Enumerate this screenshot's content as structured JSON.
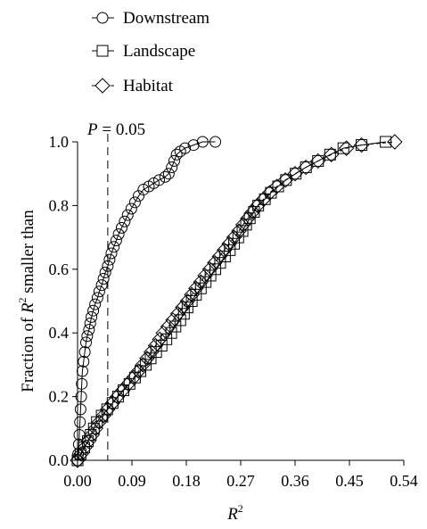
{
  "chart_data": {
    "type": "line",
    "xlabel": "R",
    "xlabel_sup": "2",
    "ylabel_pre": "Fraction of ",
    "ylabel_r": "R",
    "ylabel_sup": "2",
    "ylabel_post": " smaller than",
    "xlim": [
      0.0,
      0.54
    ],
    "ylim": [
      0.0,
      1.0
    ],
    "x_ticks": [
      0.0,
      0.09,
      0.18,
      0.27,
      0.36,
      0.45,
      0.54
    ],
    "x_tick_labels": [
      "0.00",
      "0.09",
      "0.18",
      "0.27",
      "0.36",
      "0.45",
      "0.54"
    ],
    "y_ticks": [
      0.0,
      0.2,
      0.4,
      0.6,
      0.8,
      1.0
    ],
    "y_tick_labels": [
      "0.0",
      "0.2",
      "0.4",
      "0.6",
      "0.8",
      "1.0"
    ],
    "grid": false,
    "legend_position": "top-left",
    "annotation": {
      "text_p": "P",
      "text_rest": " = 0.05",
      "x": 0.05
    },
    "series": [
      {
        "name": "Downstream",
        "marker": "circle",
        "points": [
          [
            0.0,
            0.0
          ],
          [
            0.001,
            0.02
          ],
          [
            0.002,
            0.05
          ],
          [
            0.003,
            0.08
          ],
          [
            0.004,
            0.12
          ],
          [
            0.005,
            0.16
          ],
          [
            0.006,
            0.2
          ],
          [
            0.007,
            0.24
          ],
          [
            0.008,
            0.28
          ],
          [
            0.01,
            0.31
          ],
          [
            0.012,
            0.34
          ],
          [
            0.014,
            0.37
          ],
          [
            0.016,
            0.39
          ],
          [
            0.019,
            0.41
          ],
          [
            0.021,
            0.43
          ],
          [
            0.023,
            0.45
          ],
          [
            0.026,
            0.47
          ],
          [
            0.029,
            0.49
          ],
          [
            0.033,
            0.51
          ],
          [
            0.036,
            0.53
          ],
          [
            0.04,
            0.55
          ],
          [
            0.043,
            0.57
          ],
          [
            0.046,
            0.59
          ],
          [
            0.05,
            0.61
          ],
          [
            0.053,
            0.63
          ],
          [
            0.056,
            0.65
          ],
          [
            0.06,
            0.67
          ],
          [
            0.064,
            0.69
          ],
          [
            0.068,
            0.71
          ],
          [
            0.073,
            0.73
          ],
          [
            0.078,
            0.75
          ],
          [
            0.083,
            0.77
          ],
          [
            0.089,
            0.79
          ],
          [
            0.095,
            0.81
          ],
          [
            0.101,
            0.83
          ],
          [
            0.109,
            0.85
          ],
          [
            0.118,
            0.86
          ],
          [
            0.126,
            0.87
          ],
          [
            0.135,
            0.88
          ],
          [
            0.145,
            0.89
          ],
          [
            0.151,
            0.9
          ],
          [
            0.156,
            0.92
          ],
          [
            0.16,
            0.94
          ],
          [
            0.164,
            0.96
          ],
          [
            0.17,
            0.97
          ],
          [
            0.178,
            0.98
          ],
          [
            0.192,
            0.99
          ],
          [
            0.207,
            1.0
          ],
          [
            0.228,
            1.0
          ]
        ]
      },
      {
        "name": "Landscape",
        "marker": "square",
        "points": [
          [
            0.0,
            0.0
          ],
          [
            0.005,
            0.02
          ],
          [
            0.011,
            0.04
          ],
          [
            0.017,
            0.06
          ],
          [
            0.022,
            0.08
          ],
          [
            0.027,
            0.1
          ],
          [
            0.032,
            0.12
          ],
          [
            0.04,
            0.14
          ],
          [
            0.049,
            0.16
          ],
          [
            0.058,
            0.18
          ],
          [
            0.067,
            0.2
          ],
          [
            0.076,
            0.22
          ],
          [
            0.086,
            0.24
          ],
          [
            0.095,
            0.26
          ],
          [
            0.104,
            0.28
          ],
          [
            0.113,
            0.3
          ],
          [
            0.121,
            0.32
          ],
          [
            0.13,
            0.34
          ],
          [
            0.139,
            0.36
          ],
          [
            0.147,
            0.38
          ],
          [
            0.155,
            0.4
          ],
          [
            0.162,
            0.42
          ],
          [
            0.17,
            0.44
          ],
          [
            0.176,
            0.46
          ],
          [
            0.182,
            0.48
          ],
          [
            0.189,
            0.5
          ],
          [
            0.196,
            0.52
          ],
          [
            0.204,
            0.54
          ],
          [
            0.212,
            0.56
          ],
          [
            0.22,
            0.58
          ],
          [
            0.228,
            0.6
          ],
          [
            0.236,
            0.62
          ],
          [
            0.244,
            0.64
          ],
          [
            0.252,
            0.66
          ],
          [
            0.259,
            0.68
          ],
          [
            0.266,
            0.7
          ],
          [
            0.273,
            0.72
          ],
          [
            0.279,
            0.74
          ],
          [
            0.285,
            0.76
          ],
          [
            0.292,
            0.78
          ],
          [
            0.299,
            0.8
          ],
          [
            0.31,
            0.82
          ],
          [
            0.32,
            0.84
          ],
          [
            0.332,
            0.86
          ],
          [
            0.345,
            0.88
          ],
          [
            0.361,
            0.9
          ],
          [
            0.378,
            0.92
          ],
          [
            0.398,
            0.94
          ],
          [
            0.418,
            0.96
          ],
          [
            0.44,
            0.98
          ],
          [
            0.47,
            0.99
          ],
          [
            0.51,
            1.0
          ]
        ]
      },
      {
        "name": "Habitat",
        "marker": "diamond",
        "points": [
          [
            0.0,
            0.0
          ],
          [
            0.006,
            0.02
          ],
          [
            0.012,
            0.04
          ],
          [
            0.018,
            0.06
          ],
          [
            0.024,
            0.08
          ],
          [
            0.03,
            0.1
          ],
          [
            0.036,
            0.12
          ],
          [
            0.043,
            0.14
          ],
          [
            0.05,
            0.16
          ],
          [
            0.058,
            0.18
          ],
          [
            0.066,
            0.2
          ],
          [
            0.075,
            0.22
          ],
          [
            0.084,
            0.24
          ],
          [
            0.093,
            0.26
          ],
          [
            0.101,
            0.28
          ],
          [
            0.108,
            0.3
          ],
          [
            0.115,
            0.32
          ],
          [
            0.122,
            0.34
          ],
          [
            0.129,
            0.36
          ],
          [
            0.136,
            0.38
          ],
          [
            0.142,
            0.4
          ],
          [
            0.15,
            0.42
          ],
          [
            0.158,
            0.44
          ],
          [
            0.166,
            0.46
          ],
          [
            0.174,
            0.48
          ],
          [
            0.182,
            0.5
          ],
          [
            0.189,
            0.52
          ],
          [
            0.196,
            0.54
          ],
          [
            0.204,
            0.56
          ],
          [
            0.211,
            0.58
          ],
          [
            0.219,
            0.6
          ],
          [
            0.227,
            0.62
          ],
          [
            0.235,
            0.64
          ],
          [
            0.243,
            0.66
          ],
          [
            0.251,
            0.68
          ],
          [
            0.259,
            0.7
          ],
          [
            0.267,
            0.72
          ],
          [
            0.274,
            0.74
          ],
          [
            0.282,
            0.76
          ],
          [
            0.29,
            0.78
          ],
          [
            0.298,
            0.8
          ],
          [
            0.308,
            0.82
          ],
          [
            0.318,
            0.84
          ],
          [
            0.33,
            0.86
          ],
          [
            0.344,
            0.88
          ],
          [
            0.36,
            0.9
          ],
          [
            0.378,
            0.92
          ],
          [
            0.398,
            0.94
          ],
          [
            0.42,
            0.96
          ],
          [
            0.445,
            0.98
          ],
          [
            0.47,
            0.99
          ],
          [
            0.525,
            1.0
          ]
        ]
      }
    ]
  }
}
